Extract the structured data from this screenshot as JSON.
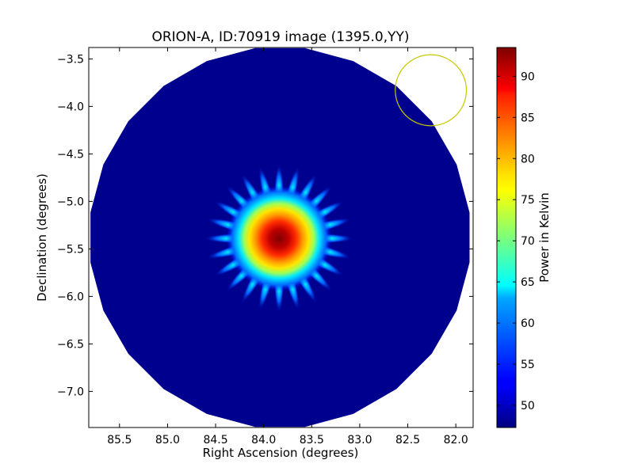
{
  "chart_data": {
    "type": "heatmap",
    "title": "ORION-A, ID:70919 image (1395.0,YY)",
    "xlabel": "Right Ascension (degrees)",
    "ylabel": "Declination (degrees)",
    "xlim": [
      85.82,
      81.82
    ],
    "ylim": [
      -7.38,
      -3.38
    ],
    "x_ticks": [
      85.5,
      85.0,
      84.5,
      84.0,
      83.5,
      83.0,
      82.5,
      82.0
    ],
    "x_tick_labels": [
      "85.5",
      "85.0",
      "84.5",
      "84.0",
      "83.5",
      "83.0",
      "82.5",
      "82.0"
    ],
    "y_ticks": [
      -3.5,
      -4.0,
      -4.5,
      -5.0,
      -5.5,
      -6.0,
      -6.5,
      -7.0
    ],
    "y_tick_labels": [
      "−3.5",
      "−4.0",
      "−4.5",
      "−5.0",
      "−5.5",
      "−6.0",
      "−6.5",
      "−7.0"
    ],
    "colormap": "jet",
    "colorbar": {
      "label": "Power in Kelvin",
      "min": 47.3,
      "max": 93.5,
      "ticks": [
        50,
        55,
        60,
        65,
        70,
        75,
        80,
        85,
        90
      ],
      "tick_labels": [
        "50",
        "55",
        "60",
        "65",
        "70",
        "75",
        "80",
        "85",
        "90"
      ]
    },
    "map_field": {
      "shape": "24-sided polygon",
      "center_ra": 83.83,
      "center_dec": -5.38,
      "radius_deg": 1.99,
      "background_value": 47.5
    },
    "source": {
      "ra": 83.84,
      "dec": -5.39,
      "peak_value": 93.5,
      "sidelobe_spokes": 24
    },
    "beam_circle": {
      "ra": 82.26,
      "dec": -3.83,
      "radius_deg": 0.37,
      "color": "#c8c800"
    }
  }
}
